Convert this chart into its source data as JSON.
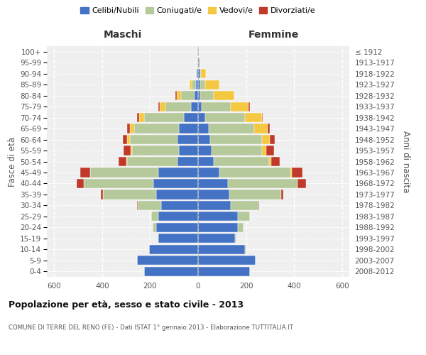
{
  "age_groups": [
    "0-4",
    "5-9",
    "10-14",
    "15-19",
    "20-24",
    "25-29",
    "30-34",
    "35-39",
    "40-44",
    "45-49",
    "50-54",
    "55-59",
    "60-64",
    "65-69",
    "70-74",
    "75-79",
    "80-84",
    "85-89",
    "90-94",
    "95-99",
    "100+"
  ],
  "birth_years": [
    "2008-2012",
    "2003-2007",
    "1998-2002",
    "1993-1997",
    "1988-1992",
    "1983-1987",
    "1978-1982",
    "1973-1977",
    "1968-1972",
    "1963-1967",
    "1958-1962",
    "1953-1957",
    "1948-1952",
    "1943-1947",
    "1938-1942",
    "1933-1937",
    "1928-1932",
    "1923-1927",
    "1918-1922",
    "1913-1917",
    "≤ 1912"
  ],
  "colors": {
    "celibe": "#4472c4",
    "coniugato": "#b5c99a",
    "vedovo": "#f5c842",
    "divorziato": "#c0392b"
  },
  "maschi": {
    "celibe": [
      225,
      255,
      205,
      165,
      175,
      165,
      155,
      175,
      185,
      165,
      85,
      80,
      85,
      80,
      60,
      30,
      15,
      8,
      5,
      3,
      2
    ],
    "coniugato": [
      0,
      0,
      0,
      5,
      15,
      30,
      95,
      220,
      290,
      285,
      210,
      195,
      200,
      185,
      165,
      105,
      55,
      20,
      5,
      0,
      0
    ],
    "vedovo": [
      0,
      0,
      0,
      0,
      0,
      0,
      0,
      0,
      0,
      0,
      5,
      5,
      10,
      20,
      20,
      25,
      20,
      8,
      0,
      0,
      0
    ],
    "divorziato": [
      0,
      0,
      0,
      0,
      0,
      0,
      5,
      10,
      30,
      40,
      30,
      30,
      20,
      10,
      10,
      5,
      5,
      0,
      0,
      0,
      0
    ]
  },
  "femmine": {
    "nubile": [
      215,
      240,
      195,
      155,
      165,
      165,
      135,
      130,
      125,
      90,
      65,
      55,
      50,
      45,
      30,
      15,
      10,
      10,
      8,
      5,
      2
    ],
    "coniugata": [
      0,
      0,
      5,
      5,
      25,
      50,
      115,
      215,
      290,
      295,
      230,
      210,
      215,
      190,
      165,
      120,
      55,
      20,
      5,
      0,
      0
    ],
    "vedova": [
      0,
      0,
      0,
      0,
      0,
      0,
      0,
      0,
      0,
      5,
      10,
      20,
      35,
      55,
      70,
      75,
      85,
      60,
      20,
      5,
      0
    ],
    "divorziata": [
      0,
      0,
      0,
      0,
      0,
      0,
      5,
      10,
      35,
      45,
      35,
      30,
      20,
      10,
      5,
      5,
      0,
      0,
      0,
      0,
      0
    ]
  },
  "xlim": 630,
  "title": "Popolazione per età, sesso e stato civile - 2013",
  "subtitle": "COMUNE DI TERRE DEL RENO (FE) - Dati ISTAT 1° gennaio 2013 - Elaborazione TUTTITALIA.IT",
  "xlabel_left": "Maschi",
  "xlabel_right": "Femmine",
  "ylabel_left": "Fasce di età",
  "ylabel_right": "Anni di nascita",
  "legend_labels": [
    "Celibi/Nubili",
    "Coniugati/e",
    "Vedovi/e",
    "Divorziati/e"
  ],
  "bg_color": "#efefef",
  "bar_height": 0.85
}
